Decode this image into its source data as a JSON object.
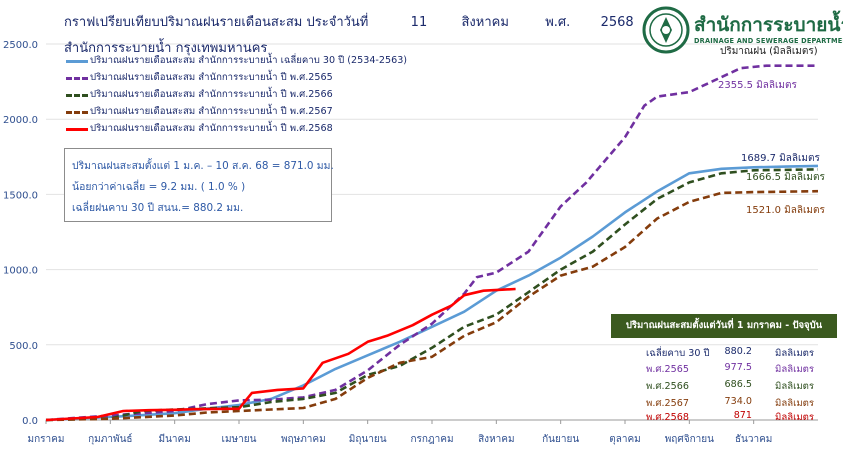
{
  "title": {
    "line1_label": "กราฟเปรียบเทียบปริมาณฝนรายเดือนสะสม ประจำวันที่",
    "day": "11",
    "month": "สิงหาคม",
    "era": "พ.ศ.",
    "year": "2568",
    "line2": "สำนักการระบายน้ำ กรุงเทพมหานคร"
  },
  "logo": {
    "thai_name": "สำนักการระบายน้ำ",
    "english_name": "DRAINAGE AND SEWERAGE DEPARTMENT",
    "icon": "bma-seal-icon"
  },
  "unit_label": "ปริมาณฝน (มิลลิเมตร)",
  "info_box": {
    "line1": "ปริมาณฝนสะสมตั้งแต่ 1 ม.ค. – 10 ส.ค. 68 = 871.0 มม.",
    "line2": "น้อยกว่าค่าเฉลี่ย = 9.2 มม. ( 1.0 % )",
    "line3": "เฉลี่ยฝนคาบ 30 ปี สนน.= 880.2 มม."
  },
  "summary_table": {
    "header": "ปริมาณฝนสะสมตั้งแต่วันที่ 1 มกราคม - ปัจจุบัน",
    "rows": [
      {
        "label": "เฉลี่ยคาบ 30 ปี",
        "value": "880.2",
        "unit": "มิลลิเมตร",
        "color": "#1b2a6b"
      },
      {
        "label": "พ.ศ.2565",
        "value": "977.5",
        "unit": "มิลลิเมตร",
        "color": "#7030a0"
      },
      {
        "label": "พ.ศ.2566",
        "value": "686.5",
        "unit": "มิลลิเมตร",
        "color": "#2f4f1f"
      },
      {
        "label": "พ.ศ.2567",
        "value": "734.0",
        "unit": "มิลลิเมตร",
        "color": "#843c0c"
      },
      {
        "label": "พ.ศ.2568",
        "value": "871",
        "unit": "มิลลิเมตร",
        "color": "#c00000"
      }
    ]
  },
  "end_labels": [
    {
      "text": "2355.5 มิลลิเมตร",
      "color": "#7030a0"
    },
    {
      "text": "1689.7 มิลลิเมตร",
      "color": "#1b2a6b"
    },
    {
      "text": "1666.5 มิลลิเมตร",
      "color": "#2f4f1f"
    },
    {
      "text": "1521.0 มิลลิเมตร",
      "color": "#843c0c"
    }
  ],
  "chart_data": {
    "type": "line",
    "x_unit": "month (1 = start of มกราคม)",
    "xlim": [
      1,
      13
    ],
    "ylim": [
      0,
      2500
    ],
    "yticks": [
      0,
      500,
      1000,
      1500,
      2000,
      2500
    ],
    "ytick_labels": [
      "0.0",
      "500.0",
      "1000.0",
      "1500.0",
      "2000.0",
      "2500.0"
    ],
    "xtick_labels": [
      "มกราคม",
      "กุมภาพันธ์",
      "มีนาคม",
      "เมษายน",
      "พฤษภาคม",
      "มิถุนายน",
      "กรกฎาคม",
      "สิงหาคม",
      "กันยายน",
      "ตุลาคม",
      "พฤศจิกายน",
      "ธันวาคม"
    ],
    "grid": "horizontal",
    "legend": "top-left",
    "series": [
      {
        "name": "ปริมาณฝนรายเดือนสะสม สำนักการระบายน้ำ เฉลี่ยคาบ 30 ปี (2534-2563)",
        "color": "#5b9bd5",
        "style": "solid",
        "x": [
          1,
          2,
          3,
          3.5,
          4,
          4.5,
          5,
          5.5,
          6,
          6.5,
          7,
          7.5,
          8,
          8.5,
          9,
          9.5,
          10,
          10.5,
          11,
          11.5,
          12,
          12.5,
          13
        ],
        "y": [
          0,
          20,
          45,
          75,
          100,
          140,
          230,
          340,
          430,
          520,
          620,
          720,
          860,
          960,
          1080,
          1220,
          1380,
          1520,
          1640,
          1670,
          1680,
          1685,
          1689.7
        ]
      },
      {
        "name": "ปริมาณฝนรายเดือนสะสม สำนักการระบายน้ำ ปี พ.ศ.2565",
        "color": "#7030a0",
        "style": "dashed",
        "x": [
          1,
          2,
          2.5,
          3,
          3.5,
          4,
          4.5,
          5,
          5.5,
          6,
          6.5,
          7,
          7.5,
          7.7,
          8,
          8.5,
          9,
          9.4,
          9.6,
          10,
          10.3,
          10.5,
          11,
          11.5,
          11.8,
          12.2,
          13
        ],
        "y": [
          0,
          30,
          45,
          60,
          105,
          130,
          135,
          150,
          200,
          330,
          500,
          640,
          840,
          950,
          980,
          1120,
          1420,
          1580,
          1680,
          1880,
          2090,
          2150,
          2180,
          2280,
          2340,
          2355.5,
          2355.5
        ]
      },
      {
        "name": "ปริมาณฝนรายเดือนสะสม สำนักการระบายน้ำ ปี พ.ศ.2566",
        "color": "#2f4f1f",
        "style": "dashed",
        "x": [
          1,
          2,
          2.5,
          3,
          4,
          4.5,
          5,
          5.5,
          6,
          6.5,
          7,
          7.5,
          8,
          8.5,
          9,
          9.5,
          10,
          10.5,
          11,
          11.5,
          12,
          13
        ],
        "y": [
          0,
          10,
          60,
          70,
          85,
          120,
          140,
          180,
          300,
          360,
          480,
          620,
          700,
          850,
          1000,
          1120,
          1300,
          1470,
          1580,
          1640,
          1660,
          1666.5
        ]
      },
      {
        "name": "ปริมาณฝนรายเดือนสะสม สำนักการระบายน้ำ ปี พ.ศ.2567",
        "color": "#843c0c",
        "style": "dashed",
        "x": [
          1,
          2,
          3,
          3.5,
          4,
          4.5,
          5,
          5.5,
          6,
          6.5,
          7,
          7.5,
          8,
          8.5,
          9,
          9.5,
          10,
          10.5,
          11,
          11.5,
          12,
          13
        ],
        "y": [
          0,
          8,
          30,
          50,
          60,
          70,
          80,
          140,
          280,
          380,
          420,
          560,
          650,
          820,
          960,
          1020,
          1150,
          1340,
          1450,
          1510,
          1515,
          1521.0
        ]
      },
      {
        "name": "ปริมาณฝนรายเดือนสะสม สำนักการระบายน้ำ ปี พ.ศ.2568",
        "color": "#ff0000",
        "style": "solid",
        "x": [
          1,
          1.8,
          2.2,
          2.6,
          3,
          3.3,
          4,
          4.2,
          4.6,
          5,
          5.3,
          5.7,
          6,
          6.3,
          6.7,
          7,
          7.3,
          7.5,
          7.8,
          8.3
        ],
        "y": [
          0,
          20,
          60,
          65,
          68,
          72,
          75,
          180,
          200,
          210,
          380,
          440,
          520,
          560,
          630,
          700,
          760,
          830,
          860,
          871
        ]
      }
    ]
  }
}
